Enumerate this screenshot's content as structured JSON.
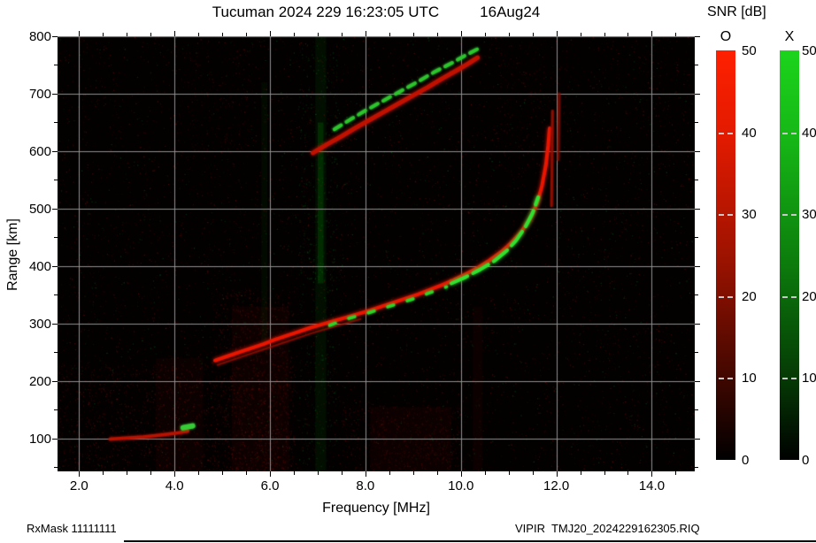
{
  "header": {
    "title": "Tucuman 2024 229 16:23:05 UTC",
    "date": "16Aug24"
  },
  "footer": {
    "left": "RxMask 11111111",
    "right": "VIPIR  TMJ20_2024229162305.RIQ"
  },
  "colorbar_header": "SNR [dB]",
  "chart_data": {
    "type": "heatmap",
    "subtype": "ionogram",
    "title": "Tucuman 2024 229 16:23:05 UTC 16Aug24",
    "xlabel": "Frequency [MHz]",
    "ylabel": "Range [km]",
    "xlim": [
      1.55,
      14.9
    ],
    "ylim": [
      43,
      800
    ],
    "x_ticks": [
      "2.0",
      "4.0",
      "6.0",
      "8.0",
      "10.0",
      "12.0",
      "14.0"
    ],
    "y_ticks": [
      100,
      200,
      300,
      400,
      500,
      600,
      700,
      800
    ],
    "grid": true,
    "background": "#030000",
    "grid_color": "#8f8f8f",
    "colorbars": [
      {
        "label": "O",
        "color": "#ff2000",
        "min": 0,
        "max": 50,
        "ticks": [
          50,
          40,
          30,
          20,
          10,
          0
        ],
        "unit": "dB"
      },
      {
        "label": "X",
        "color": "#1cd41c",
        "min": 0,
        "max": 50,
        "ticks": [
          50,
          40,
          30,
          20,
          10,
          0
        ],
        "unit": "dB"
      }
    ],
    "series": [
      {
        "name": "F-trace-O",
        "mode": "O",
        "color": "#e81600",
        "width": 4,
        "glow": 4,
        "points": [
          [
            4.85,
            236
          ],
          [
            5.1,
            243
          ],
          [
            5.35,
            250
          ],
          [
            5.6,
            257
          ],
          [
            5.85,
            264
          ],
          [
            6.1,
            272
          ],
          [
            6.35,
            279
          ],
          [
            6.6,
            286
          ],
          [
            6.85,
            293
          ],
          [
            7.1,
            299
          ],
          [
            7.35,
            305
          ],
          [
            7.6,
            311
          ],
          [
            7.85,
            317
          ],
          [
            8.1,
            323
          ],
          [
            8.35,
            330
          ],
          [
            8.6,
            337
          ],
          [
            8.85,
            344
          ],
          [
            9.1,
            351
          ],
          [
            9.35,
            359
          ],
          [
            9.6,
            367
          ],
          [
            9.85,
            376
          ],
          [
            10.1,
            386
          ],
          [
            10.35,
            397
          ],
          [
            10.6,
            410
          ],
          [
            10.85,
            425
          ],
          [
            11.05,
            440
          ],
          [
            11.25,
            458
          ],
          [
            11.45,
            482
          ],
          [
            11.6,
            510
          ],
          [
            11.7,
            540
          ],
          [
            11.78,
            575
          ],
          [
            11.83,
            610
          ],
          [
            11.86,
            640
          ]
        ]
      },
      {
        "name": "F-trace-O-double",
        "mode": "O",
        "color": "#a51000",
        "width": 2,
        "alpha": 0.55,
        "glow": 2,
        "points": [
          [
            4.9,
            228
          ],
          [
            5.4,
            242
          ],
          [
            5.9,
            256
          ],
          [
            6.4,
            270
          ],
          [
            6.9,
            284
          ],
          [
            7.4,
            296
          ],
          [
            7.9,
            308
          ]
        ]
      },
      {
        "name": "F-trace-O-tip-1",
        "mode": "O",
        "color": "#9b0f00",
        "width": 3,
        "alpha": 0.75,
        "glow": 2,
        "points": [
          [
            11.9,
            505
          ],
          [
            11.92,
            670
          ]
        ]
      },
      {
        "name": "F-trace-O-tip-2",
        "mode": "O",
        "color": "#8a0d00",
        "width": 3,
        "alpha": 0.6,
        "glow": 2,
        "points": [
          [
            12.04,
            585
          ],
          [
            12.06,
            700
          ]
        ]
      },
      {
        "name": "F-trace-X-sparse",
        "mode": "X",
        "color": "#2ad22a",
        "width": 3.5,
        "glow": 3,
        "dash": [
          7,
          16
        ],
        "points": [
          [
            7.25,
            297
          ],
          [
            7.6,
            308
          ],
          [
            7.95,
            316
          ],
          [
            8.3,
            325
          ],
          [
            8.65,
            334
          ],
          [
            9.0,
            343
          ],
          [
            9.35,
            354
          ],
          [
            9.7,
            364
          ]
        ]
      },
      {
        "name": "F-trace-X-bright",
        "mode": "X",
        "color": "#30e030",
        "width": 4,
        "glow": 4,
        "dash": [
          20,
          7
        ],
        "points": [
          [
            9.8,
            370
          ],
          [
            10.1,
            381
          ],
          [
            10.4,
            394
          ],
          [
            10.7,
            409
          ],
          [
            10.95,
            426
          ],
          [
            11.15,
            444
          ],
          [
            11.35,
            468
          ],
          [
            11.5,
            492
          ],
          [
            11.62,
            520
          ]
        ]
      },
      {
        "name": "second-hop-O",
        "mode": "O",
        "color": "#c41200",
        "width": 5,
        "glow": 4,
        "alpha": 0.95,
        "points": [
          [
            6.9,
            597
          ],
          [
            7.2,
            612
          ],
          [
            7.5,
            626
          ],
          [
            7.8,
            641
          ],
          [
            8.1,
            655
          ],
          [
            8.4,
            669
          ],
          [
            8.7,
            683
          ],
          [
            9.0,
            697
          ],
          [
            9.3,
            711
          ],
          [
            9.6,
            726
          ],
          [
            9.9,
            740
          ],
          [
            10.15,
            752
          ],
          [
            10.35,
            763
          ]
        ]
      },
      {
        "name": "second-hop-X",
        "mode": "X",
        "color": "#2cc42c",
        "width": 4,
        "glow": 3,
        "dash": [
          9,
          7
        ],
        "points": [
          [
            7.35,
            638
          ],
          [
            7.7,
            656
          ],
          [
            8.05,
            673
          ],
          [
            8.4,
            689
          ],
          [
            8.75,
            705
          ],
          [
            9.1,
            721
          ],
          [
            9.45,
            738
          ],
          [
            9.8,
            753
          ],
          [
            10.1,
            767
          ],
          [
            10.38,
            779
          ]
        ]
      },
      {
        "name": "E-echo-O",
        "mode": "O",
        "color": "#b81200",
        "width": 3.5,
        "glow": 3,
        "points": [
          [
            2.65,
            99
          ],
          [
            3.0,
            101
          ],
          [
            3.35,
            103
          ],
          [
            3.7,
            106
          ],
          [
            4.0,
            109
          ],
          [
            4.28,
            113
          ]
        ]
      },
      {
        "name": "E-echo-X",
        "mode": "X",
        "color": "#35cc35",
        "width": 6,
        "glow": 3,
        "points": [
          [
            4.18,
            119
          ],
          [
            4.38,
            122
          ]
        ]
      }
    ],
    "interference_bands": [
      {
        "f0": 6.95,
        "f1": 7.18,
        "r0": 43,
        "r1": 800,
        "rgb": "0,200,0",
        "alpha": 0.07
      },
      {
        "f0": 7.0,
        "f1": 7.12,
        "r0": 370,
        "r1": 650,
        "rgb": "0,230,0",
        "alpha": 0.14
      },
      {
        "f0": 5.82,
        "f1": 5.95,
        "r0": 250,
        "r1": 720,
        "rgb": "0,190,0",
        "alpha": 0.05
      },
      {
        "f0": 5.2,
        "f1": 6.4,
        "r0": 43,
        "r1": 330,
        "rgb": "210,20,0",
        "alpha": 0.05
      },
      {
        "f0": 8.1,
        "f1": 9.8,
        "r0": 43,
        "r1": 155,
        "rgb": "200,20,0",
        "alpha": 0.05
      },
      {
        "f0": 3.6,
        "f1": 4.6,
        "r0": 43,
        "r1": 240,
        "rgb": "200,20,0",
        "alpha": 0.045
      },
      {
        "f0": 10.25,
        "f1": 10.45,
        "r0": 43,
        "r1": 330,
        "rgb": "200,20,0",
        "alpha": 0.05
      }
    ],
    "noise": {
      "seed": 987654321,
      "red": 9000,
      "green": 2600,
      "boxes": [
        {
          "f0": 1.55,
          "f1": 6.5,
          "r0": 43,
          "r1": 230,
          "count": 2500,
          "rgb": "220,30,0",
          "alpha": 0.3
        },
        {
          "f0": 4.8,
          "f1": 6.5,
          "r0": 43,
          "r1": 360,
          "count": 1500,
          "rgb": "220,30,0",
          "alpha": 0.28
        },
        {
          "f0": 6.6,
          "f1": 7.4,
          "r0": 43,
          "r1": 790,
          "count": 900,
          "rgb": "0,220,40",
          "alpha": 0.25
        },
        {
          "f0": 7.5,
          "f1": 10.0,
          "r0": 43,
          "r1": 160,
          "count": 1200,
          "rgb": "220,30,0",
          "alpha": 0.22
        },
        {
          "f0": 4.0,
          "f1": 5.6,
          "r0": 600,
          "r1": 780,
          "count": 350,
          "rgb": "220,30,0",
          "alpha": 0.2
        },
        {
          "f0": 10.8,
          "f1": 12.3,
          "r0": 560,
          "r1": 790,
          "count": 400,
          "rgb": "220,30,0",
          "alpha": 0.22
        }
      ]
    }
  }
}
